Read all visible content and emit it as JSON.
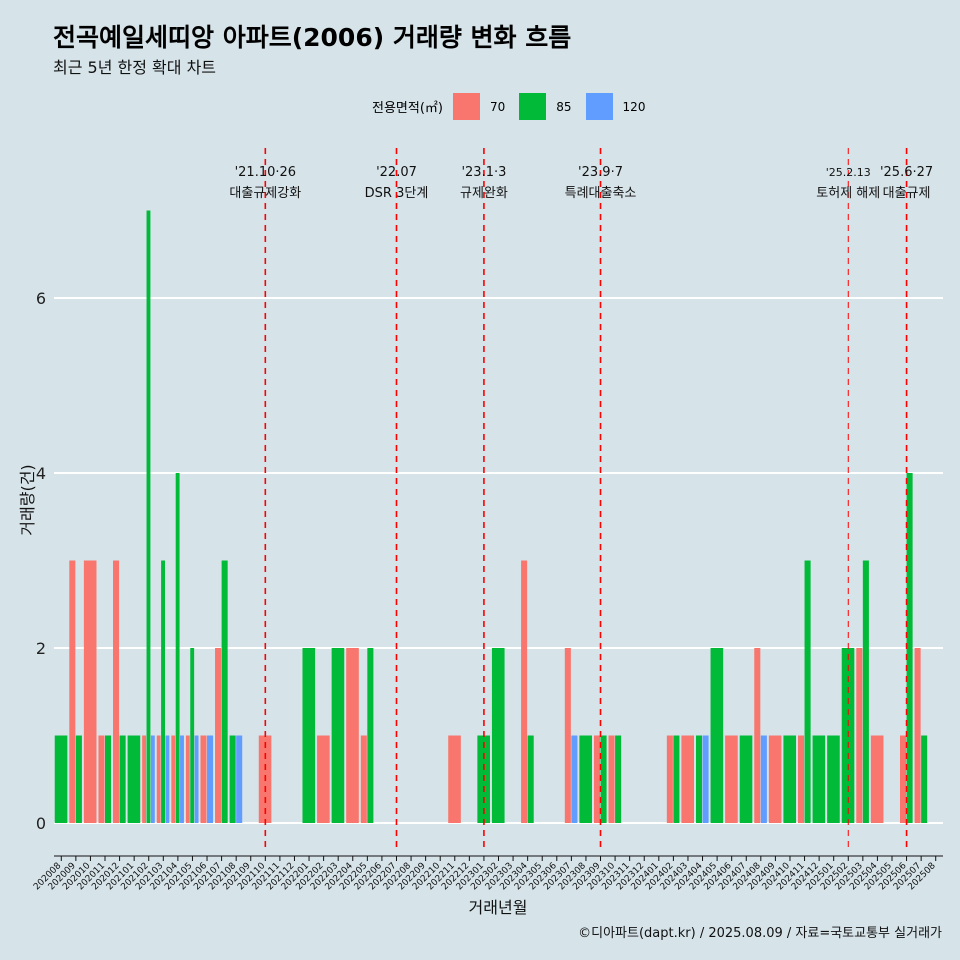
{
  "title": "전곡예일세띠앙 아파트(2006) 거래량 변화 흐름",
  "subtitle": "최근 5년 한정 확대 차트",
  "legend": {
    "title": "전용면적(㎡)",
    "items": [
      {
        "label": "70",
        "color": "#F8766D"
      },
      {
        "label": "85",
        "color": "#00BA38"
      },
      {
        "label": "120",
        "color": "#619CFF"
      }
    ]
  },
  "caption": "©디아파트(dapt.kr) / 2025.08.09 / 자료=국토교통부 실거래가",
  "chart_data": {
    "type": "bar",
    "stacking": "dodge",
    "xlabel": "거래년월",
    "ylabel": "거래량(건)",
    "ylim": [
      -0.3,
      7.2
    ],
    "yticks": [
      0,
      2,
      4,
      6
    ],
    "grid": "horizontal",
    "categories": [
      "202008",
      "202009",
      "202010",
      "202011",
      "202012",
      "202101",
      "202102",
      "202103",
      "202104",
      "202105",
      "202106",
      "202107",
      "202108",
      "202109",
      "202110",
      "202111",
      "202112",
      "202201",
      "202202",
      "202203",
      "202204",
      "202205",
      "202206",
      "202207",
      "202208",
      "202209",
      "202210",
      "202211",
      "202212",
      "202301",
      "202302",
      "202303",
      "202304",
      "202305",
      "202306",
      "202307",
      "202308",
      "202309",
      "202310",
      "202311",
      "202312",
      "202401",
      "202402",
      "202403",
      "202404",
      "202405",
      "202406",
      "202407",
      "202408",
      "202409",
      "202410",
      "202411",
      "202412",
      "202501",
      "202502",
      "202503",
      "202504",
      "202505",
      "202506",
      "202507",
      "202508"
    ],
    "bars": [
      {
        "month": "202008",
        "series": "85",
        "value": 1
      },
      {
        "month": "202009",
        "series": "70",
        "value": 3
      },
      {
        "month": "202009",
        "series": "85",
        "value": 1
      },
      {
        "month": "202010",
        "series": "70",
        "value": 3
      },
      {
        "month": "202011",
        "series": "70",
        "value": 1
      },
      {
        "month": "202011",
        "series": "85",
        "value": 1
      },
      {
        "month": "202012",
        "series": "70",
        "value": 3
      },
      {
        "month": "202012",
        "series": "85",
        "value": 1
      },
      {
        "month": "202101",
        "series": "85",
        "value": 1
      },
      {
        "month": "202102",
        "series": "70",
        "value": 1
      },
      {
        "month": "202102",
        "series": "85",
        "value": 7
      },
      {
        "month": "202102",
        "series": "120",
        "value": 1
      },
      {
        "month": "202103",
        "series": "70",
        "value": 1
      },
      {
        "month": "202103",
        "series": "85",
        "value": 3
      },
      {
        "month": "202103",
        "series": "120",
        "value": 1
      },
      {
        "month": "202104",
        "series": "70",
        "value": 1
      },
      {
        "month": "202104",
        "series": "85",
        "value": 4
      },
      {
        "month": "202104",
        "series": "120",
        "value": 1
      },
      {
        "month": "202105",
        "series": "70",
        "value": 1
      },
      {
        "month": "202105",
        "series": "85",
        "value": 2
      },
      {
        "month": "202105",
        "series": "120",
        "value": 1
      },
      {
        "month": "202106",
        "series": "70",
        "value": 1
      },
      {
        "month": "202106",
        "series": "120",
        "value": 1
      },
      {
        "month": "202107",
        "series": "70",
        "value": 2
      },
      {
        "month": "202107",
        "series": "85",
        "value": 3
      },
      {
        "month": "202108",
        "series": "85",
        "value": 1
      },
      {
        "month": "202108",
        "series": "120",
        "value": 1
      },
      {
        "month": "202110",
        "series": "70",
        "value": 1
      },
      {
        "month": "202201",
        "series": "85",
        "value": 2
      },
      {
        "month": "202202",
        "series": "70",
        "value": 1
      },
      {
        "month": "202203",
        "series": "85",
        "value": 2
      },
      {
        "month": "202204",
        "series": "70",
        "value": 2
      },
      {
        "month": "202205",
        "series": "70",
        "value": 1
      },
      {
        "month": "202205",
        "series": "85",
        "value": 2
      },
      {
        "month": "202211",
        "series": "70",
        "value": 1
      },
      {
        "month": "202301",
        "series": "85",
        "value": 1
      },
      {
        "month": "202302",
        "series": "85",
        "value": 2
      },
      {
        "month": "202304",
        "series": "70",
        "value": 3
      },
      {
        "month": "202304",
        "series": "85",
        "value": 1
      },
      {
        "month": "202307",
        "series": "70",
        "value": 2
      },
      {
        "month": "202307",
        "series": "120",
        "value": 1
      },
      {
        "month": "202308",
        "series": "85",
        "value": 1
      },
      {
        "month": "202309",
        "series": "70",
        "value": 1
      },
      {
        "month": "202309",
        "series": "85",
        "value": 1
      },
      {
        "month": "202310",
        "series": "70",
        "value": 1
      },
      {
        "month": "202310",
        "series": "85",
        "value": 1
      },
      {
        "month": "202402",
        "series": "70",
        "value": 1
      },
      {
        "month": "202402",
        "series": "85",
        "value": 1
      },
      {
        "month": "202403",
        "series": "70",
        "value": 1
      },
      {
        "month": "202404",
        "series": "85",
        "value": 1
      },
      {
        "month": "202404",
        "series": "120",
        "value": 1
      },
      {
        "month": "202405",
        "series": "85",
        "value": 2
      },
      {
        "month": "202406",
        "series": "70",
        "value": 1
      },
      {
        "month": "202407",
        "series": "85",
        "value": 1
      },
      {
        "month": "202408",
        "series": "70",
        "value": 2
      },
      {
        "month": "202408",
        "series": "120",
        "value": 1
      },
      {
        "month": "202409",
        "series": "70",
        "value": 1
      },
      {
        "month": "202410",
        "series": "85",
        "value": 1
      },
      {
        "month": "202411",
        "series": "70",
        "value": 1
      },
      {
        "month": "202411",
        "series": "85",
        "value": 3
      },
      {
        "month": "202412",
        "series": "85",
        "value": 1
      },
      {
        "month": "202501",
        "series": "85",
        "value": 1
      },
      {
        "month": "202502",
        "series": "85",
        "value": 2
      },
      {
        "month": "202503",
        "series": "70",
        "value": 2
      },
      {
        "month": "202503",
        "series": "85",
        "value": 3
      },
      {
        "month": "202504",
        "series": "70",
        "value": 1
      },
      {
        "month": "202506",
        "series": "70",
        "value": 1
      },
      {
        "month": "202506",
        "series": "85",
        "value": 4
      },
      {
        "month": "202507",
        "series": "70",
        "value": 2
      },
      {
        "month": "202507",
        "series": "85",
        "value": 1
      }
    ],
    "annotations": [
      {
        "month": "202110",
        "date": "'21.10·26",
        "label": "대출규제강화"
      },
      {
        "month": "202207",
        "date": "'22.07",
        "label": "DSR 3단계"
      },
      {
        "month": "202301",
        "date": "'23.1·3",
        "label": "규제완화"
      },
      {
        "month": "202309",
        "date": "'23.9·7",
        "label": "특례대출축소"
      },
      {
        "month": "202502",
        "date": "'25.2.13",
        "label": "토허제 해제"
      },
      {
        "month": "202506",
        "date": "'25.6·27",
        "label": "대출규제"
      }
    ]
  }
}
